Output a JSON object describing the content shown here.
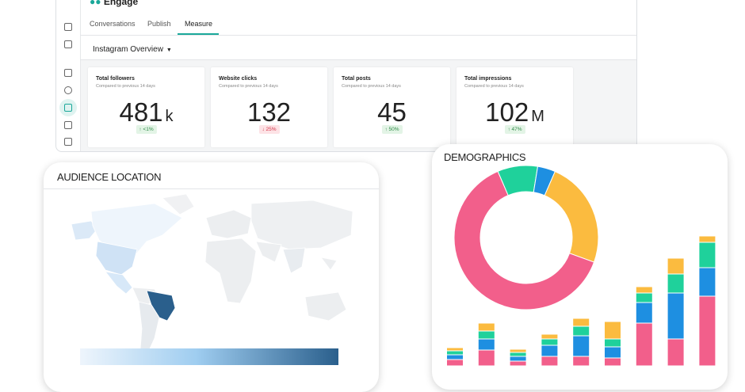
{
  "app": {
    "logo": "Engage",
    "tabs": [
      "Conversations",
      "Publish",
      "Measure"
    ],
    "dropdown": "Instagram Overview",
    "metrics": [
      {
        "title": "Total followers",
        "subtitle": "Compared to previous 14 days",
        "value": 481,
        "unit": "k",
        "change": "↑ <1%",
        "trend": "up"
      },
      {
        "title": "Website clicks",
        "subtitle": "Compared to previous 14 days",
        "value": 132,
        "unit": "",
        "change": "↓ 25%",
        "trend": "down"
      },
      {
        "title": "Total posts",
        "subtitle": "Compared to previous 14 days",
        "value": 45,
        "unit": "",
        "change": "↑ 50%",
        "trend": "up"
      },
      {
        "title": "Total impressions",
        "subtitle": "Compared to previous 14 days",
        "value": 102,
        "unit": "M",
        "change": "↑ 47%",
        "trend": "up"
      }
    ]
  },
  "audience_location": {
    "title": "AUDIENCE LOCATION"
  },
  "demographics": {
    "title": "DEMOGRAPHICS",
    "donut": {
      "type": "pie",
      "colors": [
        "#1fd19b",
        "#1e8fe1",
        "#fbbb3f",
        "#f25f8b"
      ],
      "values": [
        9,
        4,
        24,
        63
      ]
    },
    "bars": {
      "type": "bar",
      "stacked": true,
      "series": [
        {
          "color": "#f25f8b",
          "values": [
            8,
            20,
            6,
            12,
            12,
            10,
            54,
            34,
            88
          ]
        },
        {
          "color": "#1e8fe1",
          "values": [
            6,
            14,
            6,
            14,
            26,
            14,
            26,
            58,
            36
          ]
        },
        {
          "color": "#1fd19b",
          "values": [
            5,
            10,
            5,
            8,
            12,
            10,
            12,
            24,
            32
          ]
        },
        {
          "color": "#fbbb3f",
          "values": [
            4,
            10,
            4,
            6,
            10,
            22,
            8,
            20,
            8
          ]
        }
      ]
    }
  }
}
